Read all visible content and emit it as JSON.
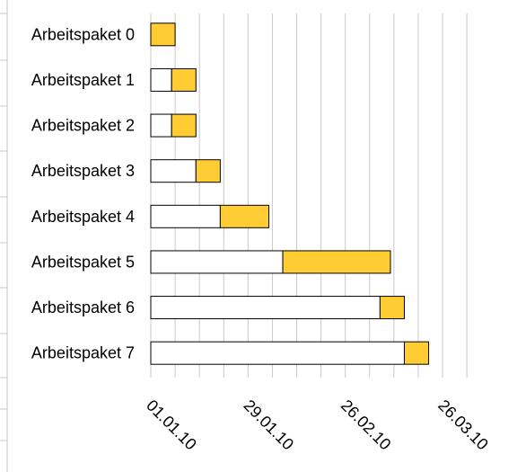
{
  "chart_data": {
    "type": "bar",
    "orientation": "horizontal",
    "stacked": true,
    "categories": [
      "Arbeitspaket 0",
      "Arbeitspaket 1",
      "Arbeitspaket 2",
      "Arbeitspaket 3",
      "Arbeitspaket 4",
      "Arbeitspaket 5",
      "Arbeitspaket 6",
      "Arbeitspaket 7"
    ],
    "x_tick_labels": [
      "01.01.10",
      "29.01.10",
      "26.02.10",
      "26.03.10"
    ],
    "xlim": [
      "01.01.10",
      "03.04.10"
    ],
    "series": [
      {
        "start": [
          "01.01.10",
          "01.01.10",
          "01.01.10",
          "01.01.10",
          "01.01.10",
          "01.01.10",
          "01.01.10",
          "01.01.10"
        ],
        "values": [
          "01.01.10",
          "07.01.10",
          "07.01.10",
          "14.01.10",
          "21.01.10",
          "08.02.10",
          "08.03.10",
          "15.03.10"
        ],
        "color": "#ffffff"
      },
      {
        "values": [
          "08.01.10",
          "14.01.10",
          "14.01.10",
          "21.01.10",
          "04.02.10",
          "11.03.10",
          "15.03.10",
          "22.03.10"
        ],
        "color": "#ffcc33"
      }
    ],
    "grid": true,
    "legend": "none",
    "x_tick_rotation": 45
  }
}
